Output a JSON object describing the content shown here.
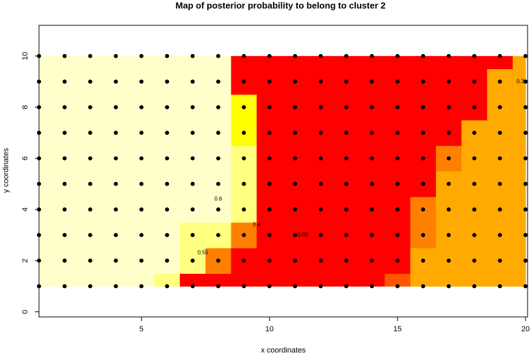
{
  "chart_data": {
    "type": "heatmap",
    "title": "Map of posterior probability to belong to cluster  2",
    "xlabel": "x coordinates",
    "ylabel": "y coordinates",
    "xlim": [
      1,
      20.08
    ],
    "ylim": [
      -0.2,
      11.2
    ],
    "xticks": [
      5,
      10,
      15,
      20
    ],
    "yticks": [
      0,
      2,
      4,
      6,
      8,
      10
    ],
    "grid_x": [
      1,
      2,
      3,
      4,
      5,
      6,
      7,
      8,
      9,
      10,
      11,
      12,
      13,
      14,
      15,
      16,
      17,
      18,
      19,
      20
    ],
    "grid_y": [
      1,
      2,
      3,
      4,
      5,
      6,
      7,
      8,
      9,
      10
    ],
    "values": [
      [
        0.65,
        0.65,
        0.65,
        0.65,
        0.65,
        0.5,
        0.02,
        0.02,
        0.02,
        0.02,
        0.02,
        0.02,
        0.02,
        0.02,
        0.15,
        0.32,
        0.32,
        0.32,
        0.32,
        0.32
      ],
      [
        0.65,
        0.65,
        0.65,
        0.65,
        0.65,
        0.65,
        0.58,
        0.2,
        0.02,
        0.02,
        0.02,
        0.02,
        0.02,
        0.02,
        0.02,
        0.32,
        0.32,
        0.32,
        0.32,
        0.32
      ],
      [
        0.65,
        0.65,
        0.65,
        0.65,
        0.65,
        0.65,
        0.58,
        0.55,
        0.2,
        0.02,
        0.02,
        0.02,
        0.02,
        0.02,
        0.02,
        0.25,
        0.32,
        0.32,
        0.32,
        0.32
      ],
      [
        0.65,
        0.65,
        0.65,
        0.65,
        0.65,
        0.65,
        0.65,
        0.65,
        0.5,
        0.02,
        0.02,
        0.02,
        0.02,
        0.02,
        0.02,
        0.2,
        0.32,
        0.32,
        0.32,
        0.32
      ],
      [
        0.65,
        0.65,
        0.65,
        0.65,
        0.65,
        0.65,
        0.65,
        0.65,
        0.55,
        0.03,
        0.02,
        0.02,
        0.02,
        0.02,
        0.02,
        0.02,
        0.32,
        0.32,
        0.32,
        0.32
      ],
      [
        0.65,
        0.65,
        0.65,
        0.65,
        0.65,
        0.65,
        0.65,
        0.65,
        0.5,
        0.02,
        0.02,
        0.02,
        0.02,
        0.02,
        0.02,
        0.02,
        0.22,
        0.32,
        0.32,
        0.32
      ],
      [
        0.65,
        0.65,
        0.65,
        0.65,
        0.65,
        0.65,
        0.65,
        0.65,
        0.45,
        0.02,
        0.02,
        0.02,
        0.02,
        0.02,
        0.02,
        0.02,
        0.02,
        0.32,
        0.32,
        0.32
      ],
      [
        0.65,
        0.65,
        0.65,
        0.65,
        0.65,
        0.65,
        0.65,
        0.65,
        0.45,
        0.02,
        0.02,
        0.02,
        0.02,
        0.02,
        0.02,
        0.02,
        0.02,
        0.02,
        0.32,
        0.32
      ],
      [
        0.65,
        0.65,
        0.65,
        0.65,
        0.65,
        0.65,
        0.65,
        0.65,
        0.03,
        0.02,
        0.02,
        0.02,
        0.02,
        0.02,
        0.02,
        0.02,
        0.02,
        0.02,
        0.32,
        0.32
      ],
      [
        0.65,
        0.65,
        0.65,
        0.65,
        0.65,
        0.65,
        0.65,
        0.65,
        0.02,
        0.02,
        0.02,
        0.02,
        0.02,
        0.02,
        0.02,
        0.02,
        0.02,
        0.02,
        0.02,
        0.32
      ]
    ],
    "breaks": [
      0,
      0.1,
      0.2,
      0.3,
      0.4,
      0.5,
      0.6,
      0.7
    ],
    "colors": [
      "#ff0000",
      "#ff5500",
      "#ff8000",
      "#ffaa00",
      "#ffff00",
      "#ffff80",
      "#ffffcc"
    ],
    "point_color": "#000000",
    "annotations": [
      {
        "text": "0.6",
        "x": 8.0,
        "y": 4.4
      },
      {
        "text": "0.55",
        "x": 7.4,
        "y": 2.3
      },
      {
        "text": "0.4",
        "x": 9.5,
        "y": 3.4
      },
      {
        "text": "0.05",
        "x": 11.3,
        "y": 3.0
      },
      {
        "text": "0.3",
        "x": 19.8,
        "y": 9.0
      }
    ]
  }
}
